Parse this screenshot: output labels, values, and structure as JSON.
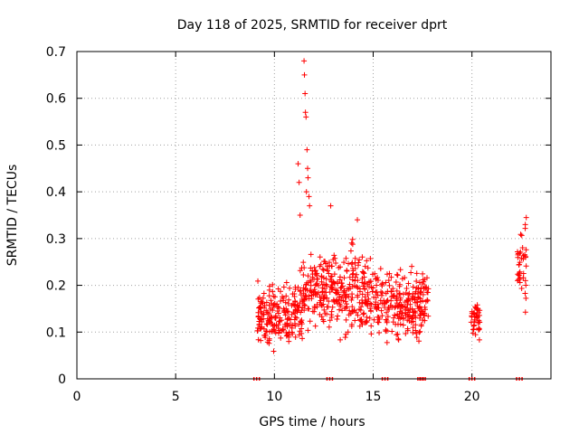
{
  "chart_data": {
    "type": "scatter",
    "title": "Day 118 of 2025, SRMTID for receiver dprt",
    "xlabel": "GPS time / hours",
    "ylabel": "SRMTID / TECUs",
    "xlim": [
      0,
      24
    ],
    "ylim": [
      0,
      0.7
    ],
    "xticks": [
      "0",
      "5",
      "10",
      "15",
      "20"
    ],
    "yticks": [
      "0",
      "0.1",
      "0.2",
      "0.3",
      "0.4",
      "0.5",
      "0.6",
      "0.7"
    ],
    "grid": true,
    "marker": "+",
    "color": "#ff0000",
    "series": [
      {
        "name": "SRMTID",
        "segments": [
          {
            "x_start": 9.1,
            "x_end": 10.9,
            "y_min": 0.05,
            "y_max": 0.22
          },
          {
            "x_start": 10.9,
            "x_end": 11.45,
            "y_min": 0.05,
            "y_max": 0.25
          },
          {
            "x_start": 11.45,
            "x_end": 11.85,
            "y_min": 0.08,
            "y_max": 0.3
          },
          {
            "x_start": 11.85,
            "x_end": 13.5,
            "y_min": 0.07,
            "y_max": 0.3
          },
          {
            "x_start": 13.5,
            "x_end": 14.3,
            "y_min": 0.05,
            "y_max": 0.34
          },
          {
            "x_start": 14.3,
            "x_end": 15.2,
            "y_min": 0.06,
            "y_max": 0.3
          },
          {
            "x_start": 15.2,
            "x_end": 17.8,
            "y_min": 0.06,
            "y_max": 0.26
          },
          {
            "x_start": 19.95,
            "x_end": 20.4,
            "y_min": 0.07,
            "y_max": 0.18
          },
          {
            "x_start": 22.3,
            "x_end": 22.75,
            "y_min": 0.12,
            "y_max": 0.35
          }
        ],
        "highlights": [
          {
            "x": 11.2,
            "y": 0.46
          },
          {
            "x": 11.25,
            "y": 0.42
          },
          {
            "x": 11.3,
            "y": 0.35
          },
          {
            "x": 11.5,
            "y": 0.68
          },
          {
            "x": 11.52,
            "y": 0.65
          },
          {
            "x": 11.55,
            "y": 0.61
          },
          {
            "x": 11.57,
            "y": 0.57
          },
          {
            "x": 11.6,
            "y": 0.56
          },
          {
            "x": 11.65,
            "y": 0.49
          },
          {
            "x": 11.68,
            "y": 0.45
          },
          {
            "x": 11.7,
            "y": 0.43
          },
          {
            "x": 11.62,
            "y": 0.4
          },
          {
            "x": 11.75,
            "y": 0.39
          },
          {
            "x": 11.78,
            "y": 0.37
          },
          {
            "x": 12.85,
            "y": 0.37
          },
          {
            "x": 14.2,
            "y": 0.34
          },
          {
            "x": 22.75,
            "y": 0.345
          },
          {
            "x": 22.7,
            "y": 0.33
          }
        ]
      },
      {
        "name": "baseline",
        "points": [
          {
            "x": 9.1,
            "y": 0
          },
          {
            "x": 12.8,
            "y": 0
          },
          {
            "x": 15.6,
            "y": 0
          },
          {
            "x": 17.4,
            "y": 0
          },
          {
            "x": 17.5,
            "y": 0
          },
          {
            "x": 20.0,
            "y": 0
          },
          {
            "x": 22.4,
            "y": 0
          }
        ]
      }
    ]
  }
}
